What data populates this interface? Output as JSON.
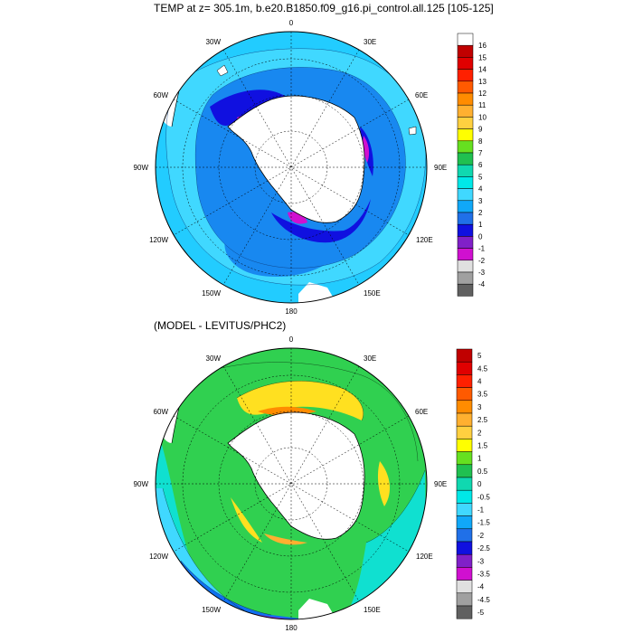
{
  "top_panel": {
    "title": "TEMP at z= 305.1m, b.e20.B1850.f09_g16.pi_control.all.125 [105-125]",
    "longitude_labels": [
      "0",
      "30E",
      "60E",
      "90E",
      "120E",
      "150E",
      "180",
      "150W",
      "120W",
      "90W",
      "60W",
      "30W"
    ],
    "colorbar": {
      "labels": [
        "16",
        "15",
        "14",
        "13",
        "12",
        "11",
        "10",
        "9",
        "8",
        "7",
        "6",
        "5",
        "4",
        "3",
        "2",
        "1",
        "0",
        "-1",
        "-2",
        "-3",
        "-4"
      ],
      "colors": [
        "#ffffff",
        "#c00000",
        "#e00000",
        "#ff2000",
        "#ff5a00",
        "#ff8c00",
        "#ffb030",
        "#ffd040",
        "#ffff00",
        "#66e020",
        "#20c050",
        "#10d8b0",
        "#00e8e8",
        "#40d8ff",
        "#10a8f8",
        "#2070e8",
        "#1010e0",
        "#8020c8",
        "#d010d0",
        "#e0e0e0",
        "#a0a0a0",
        "#606060"
      ]
    }
  },
  "bottom_panel": {
    "title": "(MODEL - LEVITUS/PHC2)",
    "longitude_labels": [
      "0",
      "30E",
      "60E",
      "90E",
      "120E",
      "150E",
      "180",
      "150W",
      "120W",
      "90W",
      "60W",
      "30W"
    ],
    "colorbar": {
      "labels": [
        "5",
        "4.5",
        "4",
        "3.5",
        "3",
        "2.5",
        "2",
        "1.5",
        "1",
        "0.5",
        "0",
        "-0.5",
        "-1",
        "-1.5",
        "-2",
        "-2.5",
        "-3",
        "-3.5",
        "-4",
        "-4.5",
        "-5"
      ],
      "colors": [
        "#c00000",
        "#e00000",
        "#ff2000",
        "#ff5a00",
        "#ff8c00",
        "#ffb030",
        "#ffd040",
        "#ffff00",
        "#66e020",
        "#20c050",
        "#10d8b0",
        "#00e8e8",
        "#40d8ff",
        "#10a8f8",
        "#2070e8",
        "#1010e0",
        "#8020c8",
        "#d010d0",
        "#e0e0e0",
        "#a0a0a0",
        "#606060"
      ]
    }
  },
  "colors": {
    "land": "#ffffff",
    "top_field_light": "#22ccff",
    "top_field_mid": "#1888f0",
    "top_field_cold": "#1010e0",
    "top_field_colder": "#d010d0",
    "bottom_field_green": "#30d050",
    "bottom_field_cyan": "#10e0d0",
    "bottom_field_yellow": "#ffe020",
    "bottom_field_blue": "#1070f0",
    "bottom_field_purple": "#9020d0"
  }
}
